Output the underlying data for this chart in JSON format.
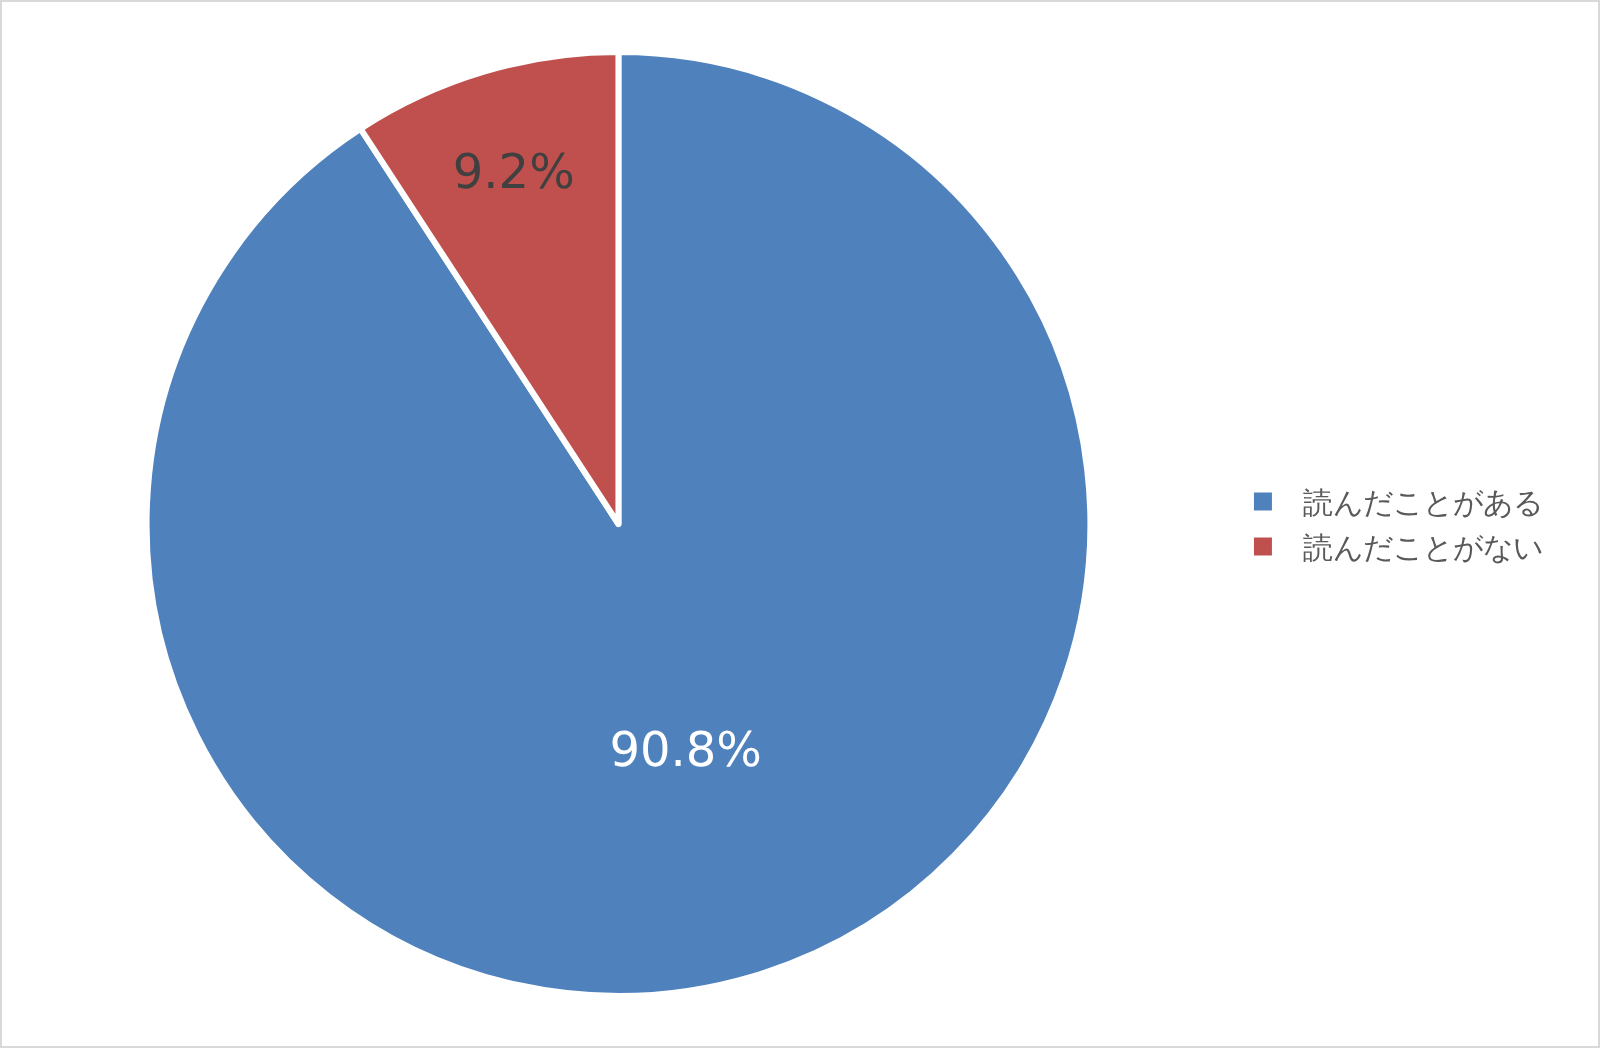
{
  "chart_data": {
    "type": "pie",
    "categories": [
      "読んだことがある",
      "読んだことがない"
    ],
    "values": [
      90.8,
      9.2
    ],
    "colors": [
      "#4f81bd",
      "#c0504d"
    ],
    "value_labels": [
      "90.8%",
      "9.2%"
    ],
    "legend": "right"
  }
}
